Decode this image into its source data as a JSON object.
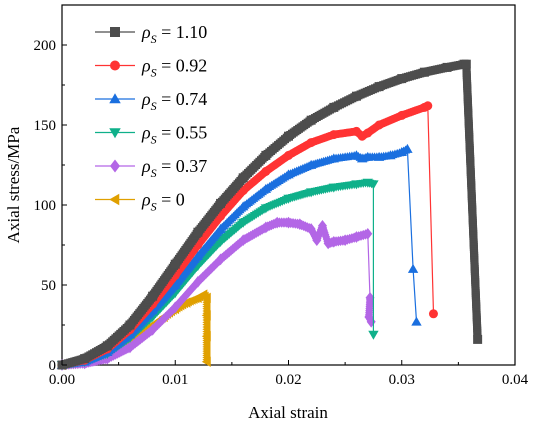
{
  "chart_data": {
    "type": "line",
    "title": "",
    "xlabel": "Axial strain",
    "ylabel": "Axial stress/MPa",
    "xlim": [
      0,
      0.04
    ],
    "ylim": [
      0,
      225
    ],
    "xticks": [
      "0.00",
      "0.01",
      "0.02",
      "0.03",
      "0.04"
    ],
    "yticks": [
      "0",
      "50",
      "100",
      "150",
      "200"
    ],
    "xtick_values": [
      0,
      0.01,
      0.02,
      0.03,
      0.04
    ],
    "ytick_values": [
      0,
      50,
      100,
      150,
      200
    ],
    "grid": false,
    "legend_position": "top-left",
    "legend_symbol": "ρ",
    "legend_subscript": "S",
    "series": [
      {
        "name": "1.10",
        "label": " = 1.10",
        "color": "#4d4d4d",
        "marker": "square",
        "x": [
          0,
          0.002,
          0.004,
          0.006,
          0.008,
          0.01,
          0.012,
          0.014,
          0.016,
          0.018,
          0.02,
          0.022,
          0.024,
          0.026,
          0.028,
          0.03,
          0.032,
          0.034,
          0.0355,
          0.0357,
          0.0367
        ],
        "y": [
          0,
          4,
          12,
          25,
          43,
          63,
          83,
          101,
          117,
          131,
          143,
          153,
          161,
          168,
          174,
          179,
          183,
          186,
          188,
          188,
          16
        ]
      },
      {
        "name": "0.92",
        "label": " = 0.92",
        "color": "#ff3333",
        "marker": "circle",
        "x": [
          0,
          0.002,
          0.004,
          0.006,
          0.008,
          0.01,
          0.012,
          0.014,
          0.016,
          0.018,
          0.02,
          0.022,
          0.024,
          0.026,
          0.0265,
          0.027,
          0.028,
          0.03,
          0.032,
          0.0323,
          0.0328
        ],
        "y": [
          0,
          3,
          10,
          22,
          38,
          56,
          75,
          93,
          109,
          121,
          131,
          139,
          144,
          146,
          143,
          145,
          150,
          156,
          161,
          162,
          32
        ]
      },
      {
        "name": "0.74",
        "label": " = 0.74",
        "color": "#1a6fdf",
        "marker": "triangle-up",
        "x": [
          0,
          0.002,
          0.004,
          0.006,
          0.008,
          0.01,
          0.012,
          0.014,
          0.016,
          0.018,
          0.02,
          0.022,
          0.024,
          0.026,
          0.0265,
          0.027,
          0.028,
          0.029,
          0.03,
          0.0305,
          0.031,
          0.0313
        ],
        "y": [
          0,
          2,
          8,
          19,
          34,
          50,
          68,
          85,
          99,
          110,
          119,
          125,
          129,
          131,
          129,
          130,
          130,
          131,
          133,
          135,
          60,
          27
        ]
      },
      {
        "name": "0.55",
        "label": " = 0.55",
        "color": "#0fb08a",
        "marker": "triangle-down",
        "x": [
          0,
          0.002,
          0.004,
          0.006,
          0.008,
          0.01,
          0.012,
          0.014,
          0.016,
          0.018,
          0.02,
          0.022,
          0.024,
          0.026,
          0.027,
          0.0275,
          0.0275
        ],
        "y": [
          0,
          2,
          7,
          17,
          30,
          45,
          62,
          77,
          89,
          98,
          104,
          108,
          111,
          113,
          114,
          113,
          19
        ]
      },
      {
        "name": "0.37",
        "label": " = 0.37",
        "color": "#b366e6",
        "marker": "diamond",
        "x": [
          0,
          0.002,
          0.004,
          0.006,
          0.008,
          0.01,
          0.012,
          0.014,
          0.016,
          0.018,
          0.019,
          0.02,
          0.021,
          0.022,
          0.0225,
          0.023,
          0.0235,
          0.024,
          0.025,
          0.026,
          0.027,
          0.0272,
          0.0271,
          0.0273
        ],
        "y": [
          0,
          1,
          4,
          11,
          22,
          36,
          52,
          66,
          78,
          86,
          89,
          89,
          88,
          85,
          78,
          87,
          76,
          77,
          78,
          80,
          82,
          42,
          30,
          27
        ]
      },
      {
        "name": "0",
        "label": " = 0",
        "color": "#e0a000",
        "marker": "triangle-left",
        "x": [
          0,
          0.002,
          0.004,
          0.006,
          0.008,
          0.009,
          0.01,
          0.011,
          0.012,
          0.0125,
          0.0128,
          0.0128,
          0.0128,
          0.0128
        ],
        "y": [
          0,
          2,
          7,
          15,
          25,
          30,
          35,
          39,
          42,
          44,
          42,
          31,
          18,
          2
        ]
      }
    ]
  }
}
